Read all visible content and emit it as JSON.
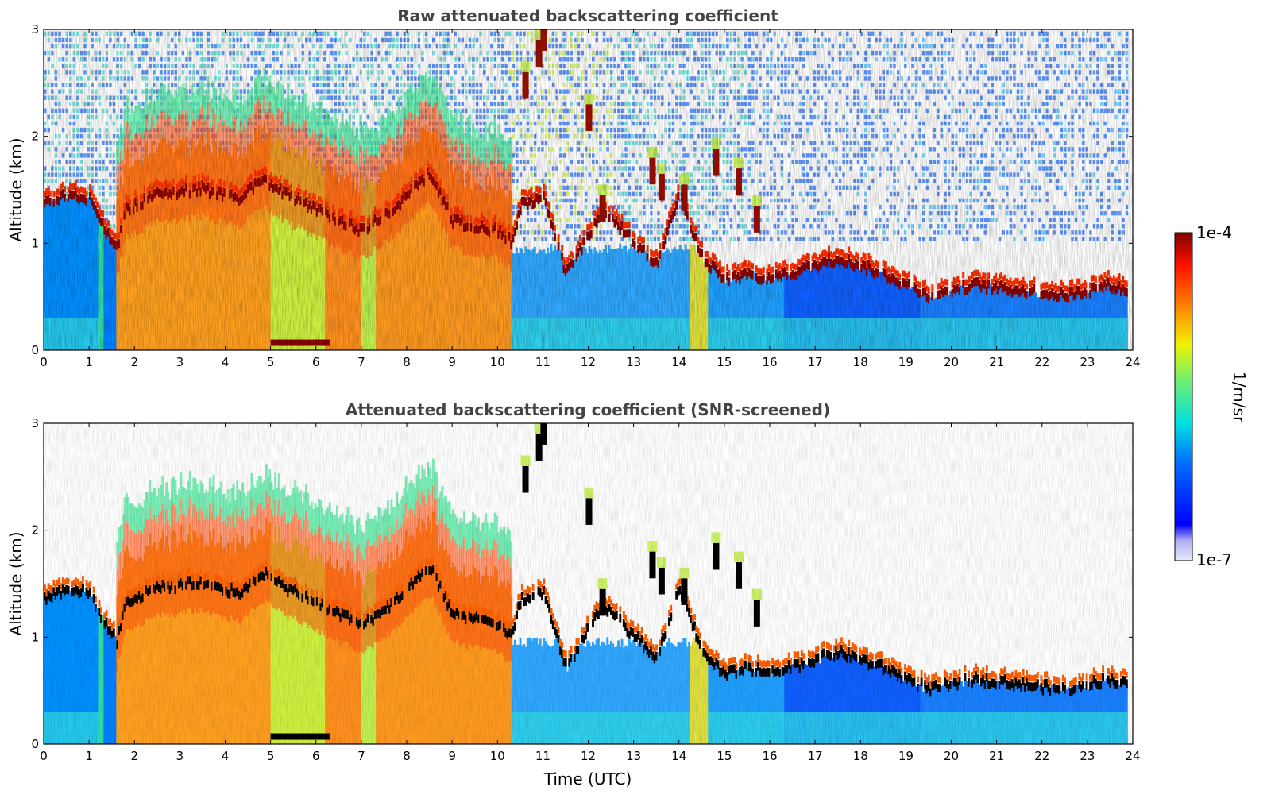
{
  "chart_data": [
    {
      "type": "heatmap",
      "title": "Raw attenuated backscattering coefficient",
      "xlabel": "",
      "ylabel": "Altitude (km)",
      "xlim": [
        0,
        24
      ],
      "ylim": [
        0,
        3
      ],
      "x_ticks": [
        "0",
        "1",
        "2",
        "3",
        "4",
        "5",
        "6",
        "7",
        "8",
        "9",
        "10",
        "11",
        "12",
        "13",
        "14",
        "15",
        "16",
        "17",
        "18",
        "19",
        "20",
        "21",
        "22",
        "23",
        "24"
      ],
      "y_ticks": [
        "0",
        "1",
        "2",
        "3"
      ],
      "screened": false,
      "cloud_base_km": [
        [
          0.0,
          1.35
        ],
        [
          0.5,
          1.45
        ],
        [
          1.0,
          1.4
        ],
        [
          1.3,
          1.15
        ],
        [
          1.6,
          0.95
        ],
        [
          1.8,
          1.3
        ],
        [
          2.5,
          1.45
        ],
        [
          3.5,
          1.5
        ],
        [
          4.3,
          1.4
        ],
        [
          4.8,
          1.6
        ],
        [
          5.3,
          1.45
        ],
        [
          5.8,
          1.35
        ],
        [
          6.3,
          1.25
        ],
        [
          7.0,
          1.1
        ],
        [
          7.8,
          1.35
        ],
        [
          8.5,
          1.65
        ],
        [
          9.0,
          1.2
        ],
        [
          10.0,
          1.1
        ],
        [
          10.3,
          1.0
        ],
        [
          10.5,
          1.35
        ],
        [
          11.0,
          1.4
        ],
        [
          11.5,
          0.7
        ],
        [
          12.3,
          1.3
        ],
        [
          13.0,
          1.0
        ],
        [
          13.5,
          0.8
        ],
        [
          14.0,
          1.45
        ],
        [
          14.5,
          0.85
        ],
        [
          15.0,
          0.65
        ],
        [
          15.5,
          0.7
        ],
        [
          16.0,
          0.65
        ],
        [
          17.5,
          0.85
        ],
        [
          18.5,
          0.7
        ],
        [
          19.5,
          0.5
        ],
        [
          20.5,
          0.6
        ],
        [
          21.5,
          0.55
        ],
        [
          22.5,
          0.5
        ],
        [
          23.5,
          0.6
        ],
        [
          23.8,
          0.55
        ]
      ]
    },
    {
      "type": "heatmap",
      "title": "Attenuated backscattering coefficient (SNR-screened)",
      "xlabel": "Time (UTC)",
      "ylabel": "Altitude (km)",
      "xlim": [
        0,
        24
      ],
      "ylim": [
        0,
        3
      ],
      "x_ticks": [
        "0",
        "1",
        "2",
        "3",
        "4",
        "5",
        "6",
        "7",
        "8",
        "9",
        "10",
        "11",
        "12",
        "13",
        "14",
        "15",
        "16",
        "17",
        "18",
        "19",
        "20",
        "21",
        "22",
        "23",
        "24"
      ],
      "y_ticks": [
        "0",
        "1",
        "2",
        "3"
      ],
      "screened": true
    }
  ],
  "colorbar": {
    "max_label": "1e-4",
    "min_label": "1e-7",
    "unit": "1/m/sr",
    "scale": "log",
    "range": [
      1e-07,
      0.0001
    ]
  }
}
